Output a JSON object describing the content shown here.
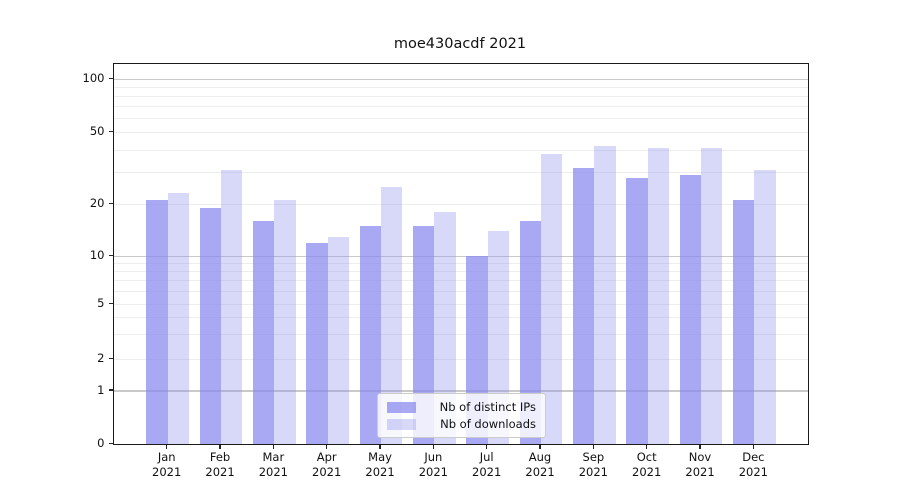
{
  "title": "moe430acdf 2021",
  "chart_data": {
    "type": "bar",
    "title": "moe430acdf 2021",
    "categories": [
      "Jan 2021",
      "Feb 2021",
      "Mar 2021",
      "Apr 2021",
      "May 2021",
      "Jun 2021",
      "Jul 2021",
      "Aug 2021",
      "Sep 2021",
      "Oct 2021",
      "Nov 2021",
      "Dec 2021"
    ],
    "month_labels": [
      "Jan",
      "Feb",
      "Mar",
      "Apr",
      "May",
      "Jun",
      "Jul",
      "Aug",
      "Sep",
      "Oct",
      "Nov",
      "Dec"
    ],
    "year_label": "2021",
    "series": [
      {
        "name": "Nb of distinct IPs",
        "color": "#8888ee",
        "opacity": 0.73,
        "values": [
          21,
          19,
          16,
          12,
          15,
          15,
          10,
          16,
          32,
          28,
          29,
          21
        ]
      },
      {
        "name": "Nb of downloads",
        "color": "#8888ee",
        "opacity": 0.33,
        "values": [
          23,
          31,
          21,
          13,
          25,
          18,
          14,
          38,
          42,
          41,
          41,
          31
        ]
      }
    ],
    "yscale": "symlog",
    "ylim": [
      0,
      120
    ],
    "y_ticks": [
      100,
      50,
      20,
      10,
      5,
      2,
      1,
      0
    ],
    "y_tick_labels": [
      "100",
      "50",
      "20",
      "10",
      "5",
      "2",
      "1",
      "0"
    ],
    "grid": true,
    "legend_position": "lower center"
  }
}
